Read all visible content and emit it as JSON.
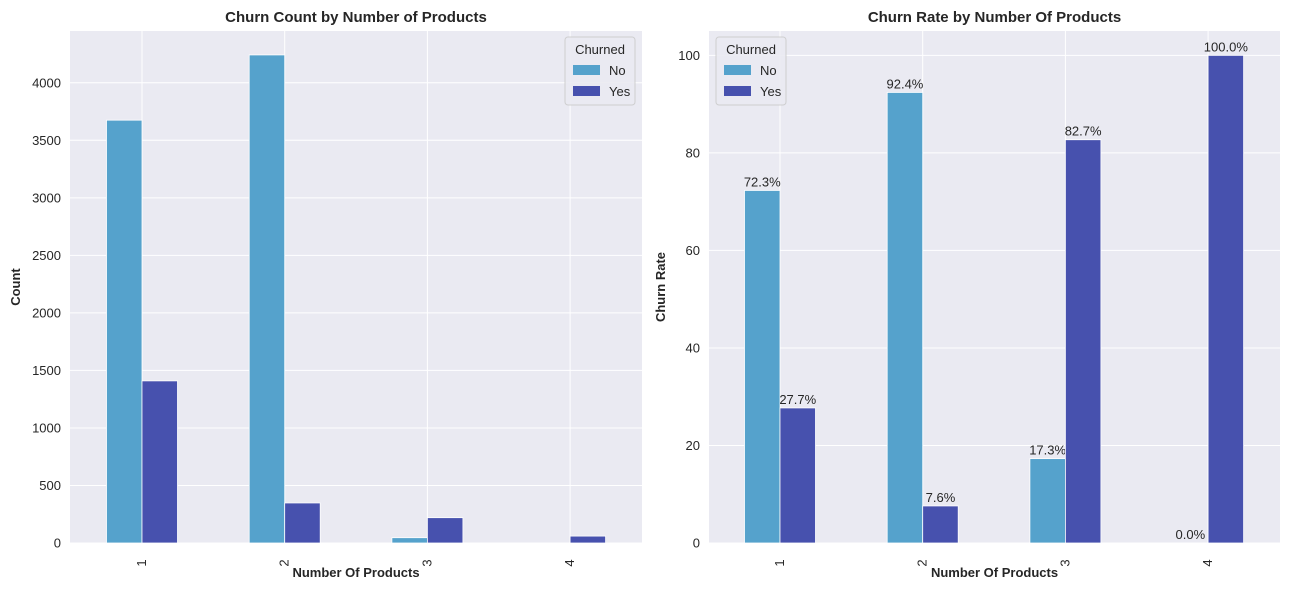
{
  "chart_data": [
    {
      "type": "bar",
      "title": "Churn Count by Number of Products",
      "xlabel": "Number Of Products",
      "ylabel": "Count",
      "categories": [
        "1",
        "2",
        "3",
        "4"
      ],
      "ylim": [
        0,
        4450
      ],
      "yticks": [
        0,
        500,
        1000,
        1500,
        2000,
        2500,
        3000,
        3500,
        4000
      ],
      "legend": {
        "title": "Churned",
        "position": "top-right"
      },
      "series": [
        {
          "name": "No",
          "color": "#55a2cc",
          "values": [
            3675,
            4242,
            46,
            0
          ]
        },
        {
          "name": "Yes",
          "color": "#4751ae",
          "values": [
            1409,
            348,
            220,
            60
          ]
        }
      ],
      "grid": true
    },
    {
      "type": "bar",
      "title": "Churn Rate by Number Of Products",
      "xlabel": "Number Of Products",
      "ylabel": "Churn Rate",
      "categories": [
        "1",
        "2",
        "3",
        "4"
      ],
      "ylim": [
        0,
        105
      ],
      "yticks": [
        0,
        20,
        40,
        60,
        80,
        100
      ],
      "legend": {
        "title": "Churned",
        "position": "top-left"
      },
      "series": [
        {
          "name": "No",
          "color": "#55a2cc",
          "values": [
            72.3,
            92.4,
            17.3,
            0.0
          ],
          "labels": [
            "72.3%",
            "92.4%",
            "17.3%",
            "0.0%"
          ]
        },
        {
          "name": "Yes",
          "color": "#4751ae",
          "values": [
            27.7,
            7.6,
            82.7,
            100.0
          ],
          "labels": [
            "27.7%",
            "7.6%",
            "82.7%",
            "100.0%"
          ]
        }
      ],
      "grid": true
    }
  ]
}
